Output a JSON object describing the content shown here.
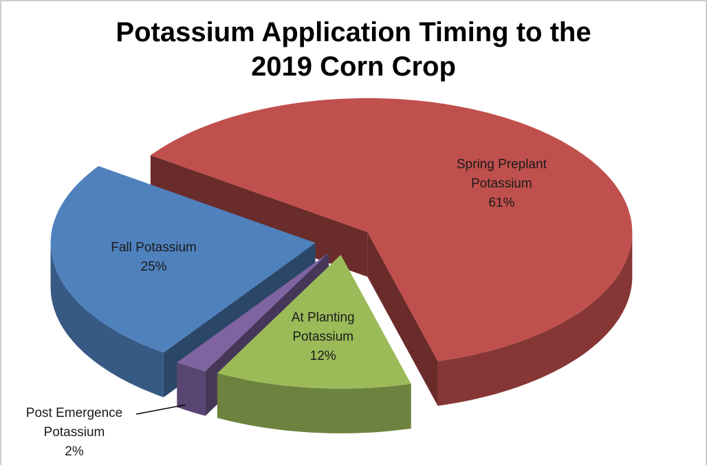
{
  "chart_data": {
    "type": "pie3d",
    "title": "Potassium Application Timing to the 2019 Corn Crop",
    "categories": [
      "Spring Preplant Potassium",
      "At Planting Potassium",
      "Post Emergence Potassium",
      "Fall Potassium"
    ],
    "values": [
      61,
      12,
      2,
      25
    ],
    "value_labels": [
      "61%",
      "12%",
      "2%",
      "25%"
    ],
    "colors": [
      "#c0504d",
      "#9bbb59",
      "#8064a2",
      "#4f81bd"
    ]
  }
}
